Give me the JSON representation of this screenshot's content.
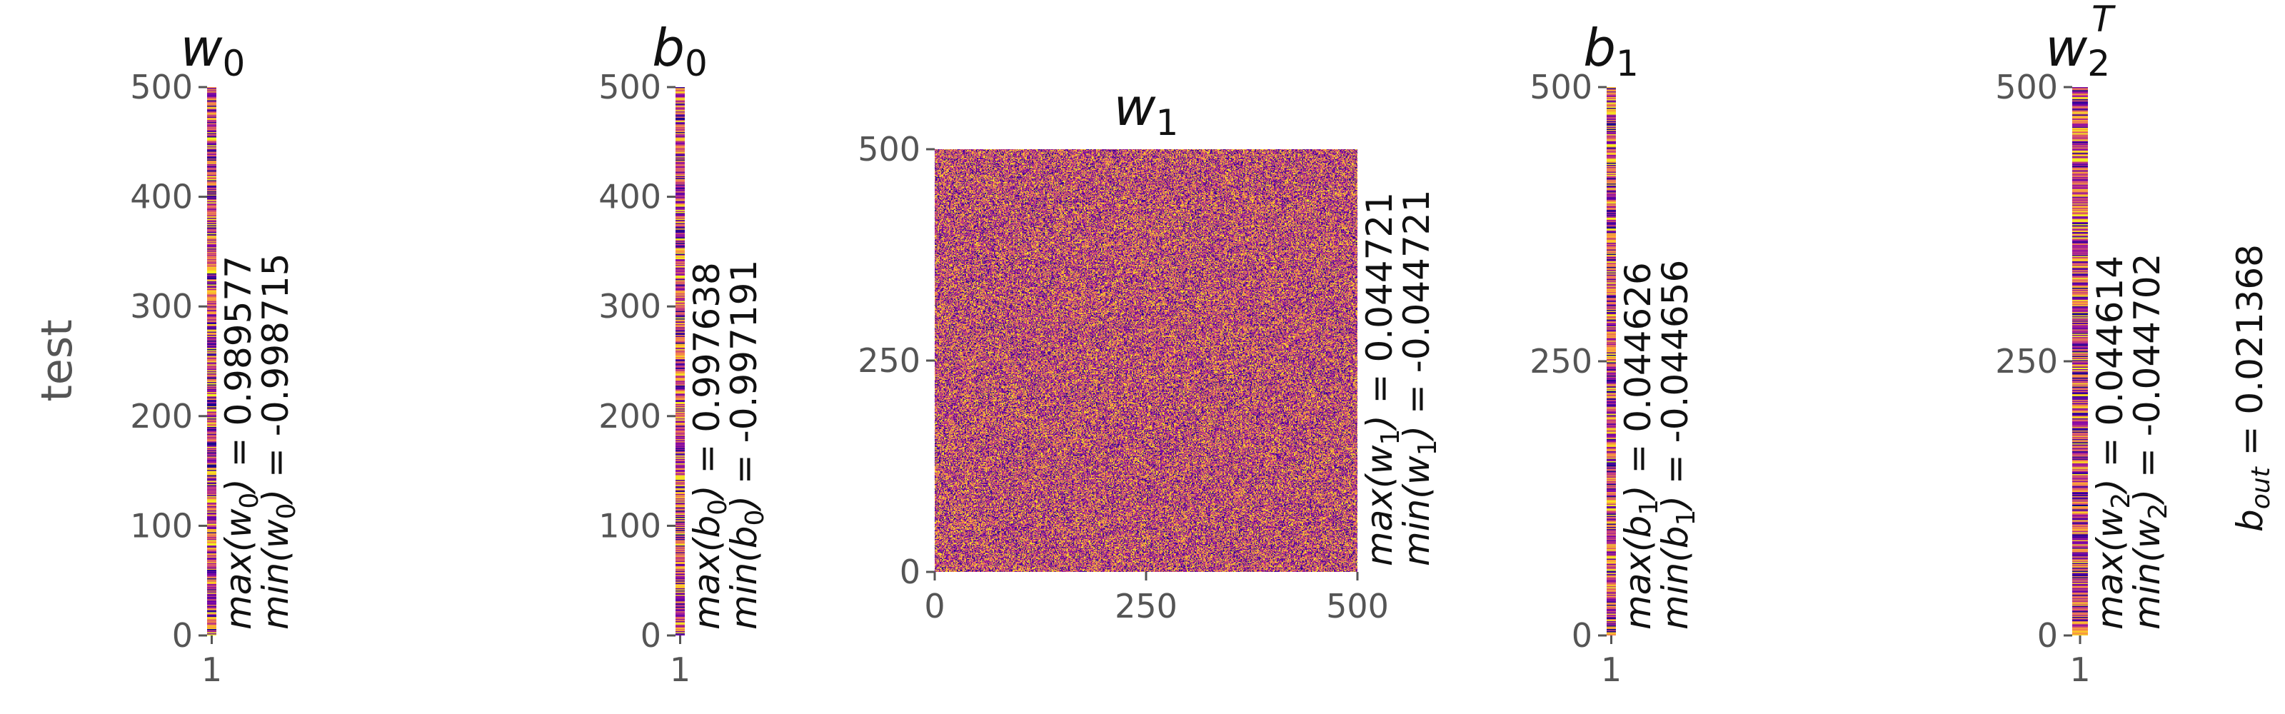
{
  "chart_data": {
    "type": "heatmap",
    "colormap": "plasma",
    "row_label": "test",
    "panels": [
      {
        "id": "w0",
        "title": {
          "base": "w",
          "sub": "0",
          "sup": ""
        },
        "shape": [
          500,
          1
        ],
        "xticks": [
          "1"
        ],
        "yticks": [
          "0",
          "100",
          "200",
          "300",
          "400",
          "500"
        ],
        "yticks_values": [
          0,
          100,
          200,
          300,
          400,
          500
        ],
        "ylim": [
          0,
          500
        ],
        "value_range": [
          -0.998715,
          0.989577
        ],
        "max_label": {
          "fn": "max",
          "arg": "w",
          "sub": "0",
          "eq": " = ",
          "value": "0.989577"
        },
        "min_label": {
          "fn": "min",
          "arg": "w",
          "sub": "0",
          "eq": " = ",
          "value": "-0.998715"
        }
      },
      {
        "id": "b0",
        "title": {
          "base": "b",
          "sub": "0",
          "sup": ""
        },
        "shape": [
          500,
          1
        ],
        "xticks": [
          "1"
        ],
        "yticks": [
          "0",
          "100",
          "200",
          "300",
          "400",
          "500"
        ],
        "yticks_values": [
          0,
          100,
          200,
          300,
          400,
          500
        ],
        "ylim": [
          0,
          500
        ],
        "value_range": [
          -0.997191,
          0.997638
        ],
        "max_label": {
          "fn": "max",
          "arg": "b",
          "sub": "0",
          "eq": " = ",
          "value": "0.997638"
        },
        "min_label": {
          "fn": "min",
          "arg": "b",
          "sub": "0",
          "eq": " = ",
          "value": "-0.997191"
        }
      },
      {
        "id": "w1",
        "title": {
          "base": "w",
          "sub": "1",
          "sup": ""
        },
        "shape": [
          500,
          500
        ],
        "xticks": [
          "0",
          "250",
          "500"
        ],
        "xticks_values": [
          0,
          250,
          500
        ],
        "xlim": [
          0,
          500
        ],
        "yticks": [
          "0",
          "250",
          "500"
        ],
        "yticks_values": [
          0,
          250,
          500
        ],
        "ylim": [
          0,
          500
        ],
        "value_range": [
          -0.044721,
          0.044721
        ],
        "max_label": {
          "fn": "max",
          "arg": "w",
          "sub": "1",
          "eq": " = ",
          "value": "0.044721"
        },
        "min_label": {
          "fn": "min",
          "arg": "w",
          "sub": "1",
          "eq": " = ",
          "value": "-0.044721"
        }
      },
      {
        "id": "b1",
        "title": {
          "base": "b",
          "sub": "1",
          "sup": ""
        },
        "shape": [
          500,
          1
        ],
        "xticks": [
          "1"
        ],
        "yticks": [
          "0",
          "250",
          "500"
        ],
        "yticks_values": [
          0,
          250,
          500
        ],
        "ylim": [
          0,
          500
        ],
        "value_range": [
          -0.044656,
          0.044626
        ],
        "max_label": {
          "fn": "max",
          "arg": "b",
          "sub": "1",
          "eq": " = ",
          "value": "0.044626"
        },
        "min_label": {
          "fn": "min",
          "arg": "b",
          "sub": "1",
          "eq": " = ",
          "value": "-0.044656"
        }
      },
      {
        "id": "w2T",
        "title": {
          "base": "w",
          "sub": "2",
          "sup": "T"
        },
        "shape": [
          500,
          1
        ],
        "xticks": [
          "1"
        ],
        "yticks": [
          "0",
          "250",
          "500"
        ],
        "yticks_values": [
          0,
          250,
          500
        ],
        "ylim": [
          0,
          500
        ],
        "value_range": [
          -0.044702,
          0.044614
        ],
        "max_label": {
          "fn": "max",
          "arg": "w",
          "sub": "2",
          "eq": " = ",
          "value": "0.044614"
        },
        "min_label": {
          "fn": "min",
          "arg": "w",
          "sub": "2",
          "eq": " = ",
          "value": "-0.044702"
        }
      }
    ],
    "bias_output": {
      "base": "b",
      "sub": "out",
      "eq": " = ",
      "value": "0.021368"
    }
  }
}
